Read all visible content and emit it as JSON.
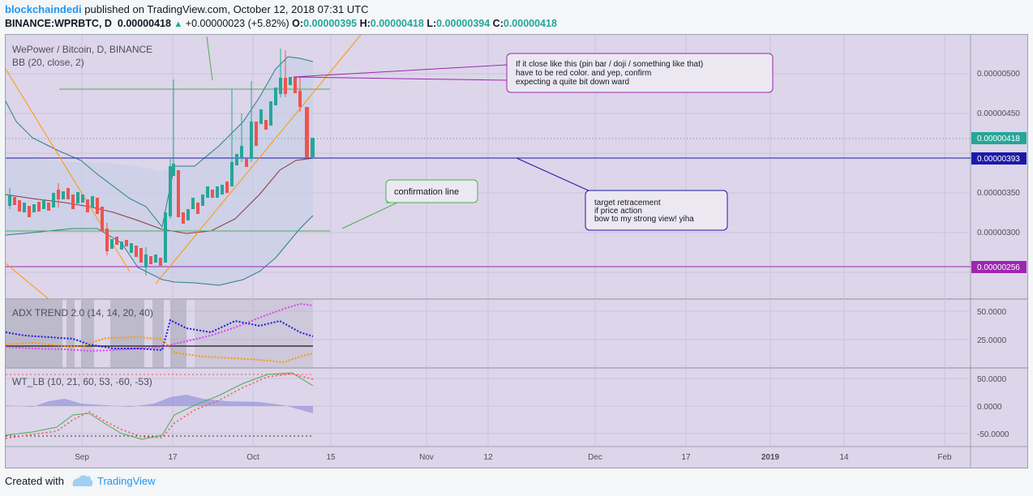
{
  "header": {
    "author": "blockchaindedi",
    "published": " published on TradingView.com, October 12, 2018 07:31 UTC",
    "symbol": "BINANCE:WPRBTC, D",
    "price": "0.00000418",
    "change_arrow": "▲",
    "change": "+0.00000023 (+5.82%)",
    "o_label": "O:",
    "o_value": "0.00000395",
    "h_label": "H:",
    "h_value": "0.00000418",
    "l_label": "L:",
    "l_value": "0.00000394",
    "c_label": "C:",
    "c_value": "0.00000418"
  },
  "main_pane": {
    "title": "WePower / Bitcoin, D, BINANCE",
    "indicator": "BB (20, close, 2)",
    "y_ticks": [
      "0.00000500",
      "0.00000450",
      "0.00000350",
      "0.00000300"
    ],
    "price_label": "0.00000418",
    "line_label_1": "0.00000393",
    "line_label_2": "0.00000256",
    "callout_1": [
      "If it close like this (pin bar / doji / something like that)",
      "have to be red color. and yep, confirm",
      "expecting a quite bit down ward"
    ],
    "callout_2": "confirmation line",
    "callout_3": [
      "target retracement",
      "if price action",
      "bow to my strong view! yiha"
    ]
  },
  "adx_pane": {
    "title": "ADX TREND 2.0 (14, 14, 20, 40)",
    "y_ticks": [
      "50.0000",
      "25.0000"
    ]
  },
  "wt_pane": {
    "title": "WT_LB (10, 21, 60, 53, -60, -53)",
    "y_ticks": [
      "50.0000",
      "0.0000",
      "-50.0000"
    ]
  },
  "x_axis": [
    "Sep",
    "17",
    "Oct",
    "15",
    "Nov",
    "12",
    "Dec",
    "17",
    "2019",
    "14",
    "Feb"
  ],
  "footer": {
    "created_with": "Created with",
    "brand": "TradingView"
  },
  "colors": {
    "background": "#ddd5ea",
    "up_candle": "#26a69a",
    "down_candle": "#ef5350",
    "bb_band": "#2a7f8a",
    "bb_basis": "#8b3a3a",
    "trendline": "#ff9800",
    "hline_green": "#4caf50",
    "hline_blue": "#1a1aa8",
    "hline_purple": "#9c27b0"
  }
}
